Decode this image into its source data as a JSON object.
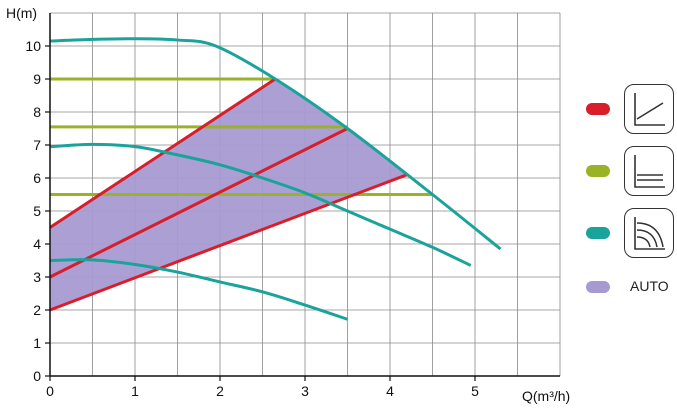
{
  "chart_data": {
    "type": "line",
    "xlabel": "Q(m³/h)",
    "ylabel": "H(m)",
    "xlim": [
      0,
      6
    ],
    "ylim": [
      0,
      11
    ],
    "x_ticks": [
      "0",
      "1",
      "2",
      "3",
      "4",
      "5"
    ],
    "y_ticks": [
      "0",
      "1",
      "2",
      "3",
      "4",
      "5",
      "6",
      "7",
      "8",
      "9",
      "10"
    ],
    "grid": true,
    "auto_region": [
      [
        0,
        2.0
      ],
      [
        0,
        4.5
      ],
      [
        2.65,
        9.0
      ],
      [
        3.5,
        7.5
      ],
      [
        4.2,
        6.1
      ]
    ],
    "series": [
      {
        "group": "constant-speed",
        "color": "#1aa39a",
        "points": [
          [
            0,
            10.15
          ],
          [
            0.5,
            10.2
          ],
          [
            1.0,
            10.22
          ],
          [
            1.5,
            10.18
          ],
          [
            1.95,
            10.0
          ],
          [
            2.65,
            9.0
          ],
          [
            3.5,
            7.5
          ],
          [
            4.5,
            5.5
          ],
          [
            5.3,
            3.85
          ]
        ]
      },
      {
        "group": "constant-speed",
        "color": "#1aa39a",
        "points": [
          [
            0,
            6.95
          ],
          [
            0.5,
            7.02
          ],
          [
            1.0,
            6.95
          ],
          [
            1.5,
            6.7
          ],
          [
            2.0,
            6.4
          ],
          [
            2.5,
            6.0
          ],
          [
            3.0,
            5.55
          ],
          [
            3.5,
            5.0
          ],
          [
            4.0,
            4.45
          ],
          [
            4.5,
            3.9
          ],
          [
            4.95,
            3.35
          ]
        ]
      },
      {
        "group": "constant-speed",
        "color": "#1aa39a",
        "points": [
          [
            0,
            3.5
          ],
          [
            0.5,
            3.52
          ],
          [
            1.0,
            3.38
          ],
          [
            1.5,
            3.15
          ],
          [
            2.0,
            2.85
          ],
          [
            2.5,
            2.55
          ],
          [
            3.0,
            2.15
          ],
          [
            3.5,
            1.72
          ]
        ]
      },
      {
        "group": "constant-pressure",
        "color": "#9ab324",
        "points": [
          [
            0,
            9.0
          ],
          [
            2.65,
            9.0
          ]
        ]
      },
      {
        "group": "constant-pressure",
        "color": "#9ab324",
        "points": [
          [
            0,
            7.55
          ],
          [
            3.5,
            7.55
          ]
        ]
      },
      {
        "group": "constant-pressure",
        "color": "#9ab324",
        "points": [
          [
            0,
            5.5
          ],
          [
            4.5,
            5.5
          ]
        ]
      },
      {
        "group": "proportional-pressure",
        "color": "#d81e2a",
        "points": [
          [
            0,
            4.5
          ],
          [
            2.65,
            9.0
          ]
        ]
      },
      {
        "group": "proportional-pressure",
        "color": "#d81e2a",
        "points": [
          [
            0,
            3.0
          ],
          [
            3.5,
            7.5
          ]
        ]
      },
      {
        "group": "proportional-pressure",
        "color": "#d81e2a",
        "points": [
          [
            0,
            2.0
          ],
          [
            4.2,
            6.1
          ]
        ]
      }
    ],
    "legend": [
      {
        "icon": "proportional-pressure-icon",
        "color": "#d81e2a",
        "text": ""
      },
      {
        "icon": "constant-pressure-icon",
        "color": "#9ab324",
        "text": ""
      },
      {
        "icon": "constant-speed-icon",
        "color": "#1aa39a",
        "text": ""
      },
      {
        "icon": "",
        "color": "#a79ad1",
        "text": "AUTO"
      }
    ]
  }
}
